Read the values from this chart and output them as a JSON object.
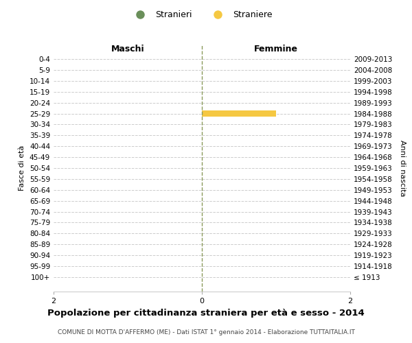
{
  "age_groups": [
    "100+",
    "95-99",
    "90-94",
    "85-89",
    "80-84",
    "75-79",
    "70-74",
    "65-69",
    "60-64",
    "55-59",
    "50-54",
    "45-49",
    "40-44",
    "35-39",
    "30-34",
    "25-29",
    "20-24",
    "15-19",
    "10-14",
    "5-9",
    "0-4"
  ],
  "birth_years": [
    "≤ 1913",
    "1914-1918",
    "1919-1923",
    "1924-1928",
    "1929-1933",
    "1934-1938",
    "1939-1943",
    "1944-1948",
    "1949-1953",
    "1954-1958",
    "1959-1963",
    "1964-1968",
    "1969-1973",
    "1974-1978",
    "1979-1983",
    "1984-1988",
    "1989-1993",
    "1994-1998",
    "1999-2003",
    "2004-2008",
    "2009-2013"
  ],
  "males": [
    0,
    0,
    0,
    0,
    0,
    0,
    0,
    0,
    0,
    0,
    0,
    0,
    0,
    0,
    0,
    0,
    0,
    0,
    0,
    0,
    0
  ],
  "females": [
    0,
    0,
    0,
    0,
    0,
    0,
    0,
    0,
    0,
    0,
    0,
    0,
    0,
    0,
    0,
    1,
    0,
    0,
    0,
    0,
    0
  ],
  "male_color": "#6a8f5a",
  "female_color": "#f5c842",
  "center_line_color": "#8a9a5b",
  "grid_color": "#cccccc",
  "background_color": "#ffffff",
  "title": "Popolazione per cittadinanza straniera per età e sesso - 2014",
  "subtitle": "COMUNE DI MOTTA D'AFFERMO (ME) - Dati ISTAT 1° gennaio 2014 - Elaborazione TUTTAITALIA.IT",
  "ylabel_left": "Fasce di età",
  "ylabel_right": "Anni di nascita",
  "xlim": 2,
  "legend_stranieri": "Stranieri",
  "legend_straniere": "Straniere",
  "maschi_label": "Maschi",
  "femmine_label": "Femmine"
}
